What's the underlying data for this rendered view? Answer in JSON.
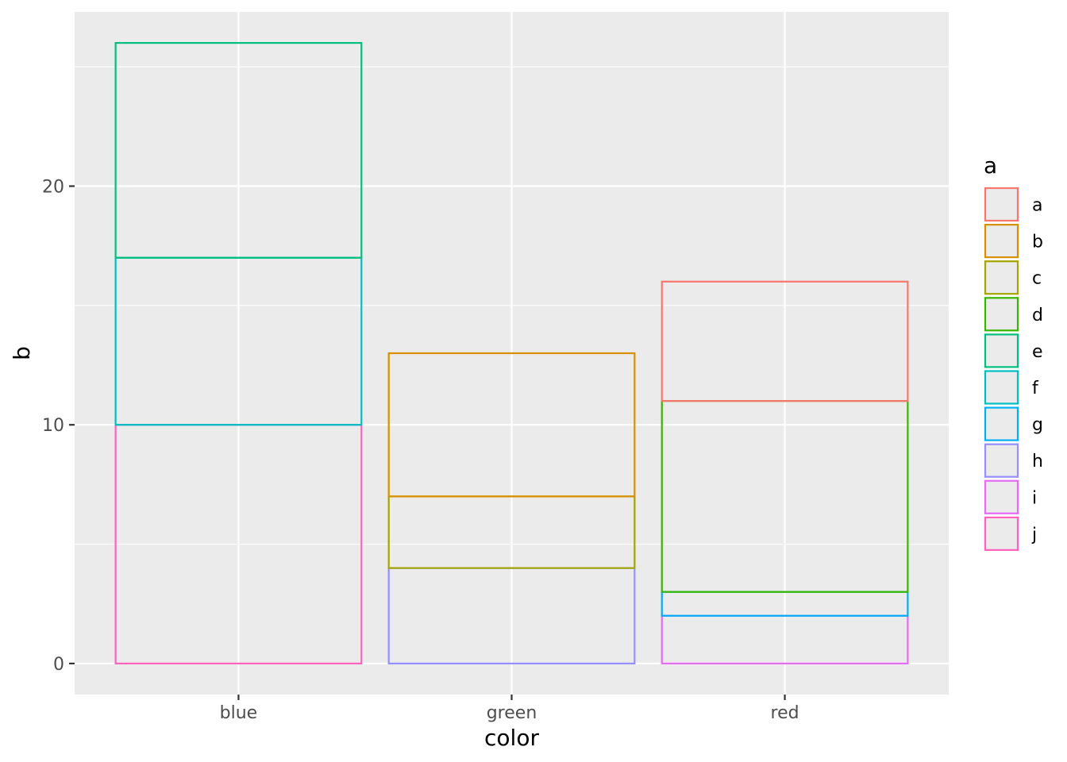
{
  "chart_data": {
    "type": "bar",
    "stacked": true,
    "bar_fill": "none",
    "categories": [
      "blue",
      "green",
      "red"
    ],
    "xlabel": "color",
    "ylabel": "b",
    "ylim": [
      -1.3,
      27.3
    ],
    "yticks": [
      0,
      10,
      20
    ],
    "grid": true,
    "panel_background": "#ebebeb",
    "grid_color": "#ffffff",
    "segments": [
      {
        "category": "blue",
        "a": "j",
        "value": 10
      },
      {
        "category": "blue",
        "a": "f",
        "value": 7
      },
      {
        "category": "blue",
        "a": "e",
        "value": 9
      },
      {
        "category": "green",
        "a": "h",
        "value": 4
      },
      {
        "category": "green",
        "a": "c",
        "value": 3
      },
      {
        "category": "green",
        "a": "b",
        "value": 6
      },
      {
        "category": "red",
        "a": "i",
        "value": 2
      },
      {
        "category": "red",
        "a": "g",
        "value": 1
      },
      {
        "category": "red",
        "a": "d",
        "value": 8
      },
      {
        "category": "red",
        "a": "a",
        "value": 5
      }
    ],
    "legend": {
      "title": "a",
      "position": "right",
      "entries": [
        {
          "label": "a",
          "color": "#F8766D"
        },
        {
          "label": "b",
          "color": "#D89000"
        },
        {
          "label": "c",
          "color": "#A3A500"
        },
        {
          "label": "d",
          "color": "#39B600"
        },
        {
          "label": "e",
          "color": "#00BF7D"
        },
        {
          "label": "f",
          "color": "#00BFC4"
        },
        {
          "label": "g",
          "color": "#00B0F6"
        },
        {
          "label": "h",
          "color": "#9590FF"
        },
        {
          "label": "i",
          "color": "#E76BF3"
        },
        {
          "label": "j",
          "color": "#FF62BC"
        }
      ]
    }
  }
}
